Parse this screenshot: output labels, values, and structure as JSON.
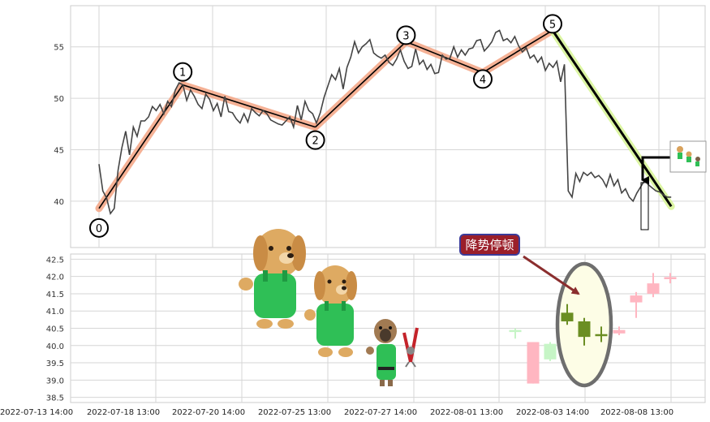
{
  "chart_data": [
    {
      "type": "line",
      "panel": "top",
      "ylim": [
        35.5,
        59
      ],
      "y_ticks": [
        "40",
        "45",
        "50",
        "55"
      ],
      "grid": true,
      "wave_points": [
        {
          "label": "0",
          "x": 0,
          "y": 39.3
        },
        {
          "label": "1",
          "x": 12,
          "y": 51.3
        },
        {
          "label": "2",
          "x": 31,
          "y": 47.2
        },
        {
          "label": "3",
          "x": 44,
          "y": 55.5
        },
        {
          "label": "4",
          "x": 55,
          "y": 52.5
        },
        {
          "label": "5",
          "x": 65,
          "y": 56.6
        }
      ],
      "trend_segments": [
        {
          "from": 0,
          "to": 5,
          "color": "#f4a98a"
        },
        {
          "from": 5,
          "to": 6,
          "color": "#d9f59a"
        }
      ],
      "last_point": {
        "x": 82,
        "y": 39.5
      },
      "series": [
        {
          "values": [
            43.6,
            41.0,
            40.3,
            38.8,
            39.3,
            43.0,
            45.2,
            46.8,
            44.5,
            47.2,
            46.3,
            47.8,
            47.8,
            48.2,
            49.2,
            48.8,
            49.4,
            48.5,
            49.7,
            49.2,
            50.8,
            51.5,
            51.3,
            49.8,
            50.8,
            50.2,
            49.4,
            49.0,
            50.4,
            49.9,
            48.8,
            49.5,
            48.2,
            50.2,
            48.7,
            48.6,
            48.0,
            47.6,
            48.5,
            47.7,
            49.0,
            48.6,
            48.3,
            48.8,
            48.5,
            47.9,
            47.7,
            47.5,
            47.4,
            47.8,
            48.2,
            47.2,
            49.3,
            47.9,
            49.7,
            48.8,
            48.5,
            47.6,
            48.6,
            50.1,
            51.2,
            52.3,
            51.8,
            52.9,
            50.9,
            53.0,
            54.0,
            55.5,
            54.4,
            55.0,
            55.3,
            55.7,
            54.4,
            54.1,
            53.9,
            54.2,
            53.5,
            53.2,
            53.8,
            54.7,
            53.6,
            52.9,
            53.1,
            54.8,
            53.3,
            53.7,
            52.8,
            53.3,
            52.4,
            52.5,
            54.2,
            53.8,
            53.9,
            55.0,
            54.0,
            54.7,
            54.2,
            54.8,
            54.9,
            55.6,
            55.7,
            54.6,
            55.0,
            55.5,
            56.4,
            56.6,
            55.6,
            55.8,
            55.4,
            56.0,
            55.1,
            54.5,
            54.9,
            53.9,
            54.2,
            53.5,
            54.0,
            52.7,
            53.4,
            53.0,
            53.6,
            51.6,
            53.3,
            41.0,
            40.4,
            42.7,
            41.9,
            42.8,
            42.5,
            42.8,
            42.3,
            42.5,
            42.1,
            41.4,
            42.6,
            41.5,
            42.1,
            40.8,
            41.2,
            40.4,
            40.0,
            40.8,
            41.4,
            42.0,
            41.6,
            41.3,
            41.0,
            40.9,
            40.6,
            40.4,
            40.4
          ]
        }
      ]
    },
    {
      "type": "candlestick",
      "panel": "bottom",
      "ylim": [
        38.35,
        42.65
      ],
      "y_ticks": [
        "38.5",
        "39.0",
        "39.5",
        "40.0",
        "40.5",
        "41.0",
        "41.5",
        "42.0",
        "42.5"
      ],
      "x_ticks": [
        "2022-07-13 14:00",
        "2022-07-18 13:00",
        "2022-07-20 14:00",
        "2022-07-25 13:00",
        "2022-07-27 14:00",
        "2022-08-01 13:00",
        "2022-08-03 14:00",
        "2022-08-08 13:00"
      ],
      "grid": true,
      "candles": [
        {
          "x": 0,
          "open": 40.45,
          "close": 40.4,
          "high": 40.5,
          "low": 40.2,
          "color": "#c6f5c6"
        },
        {
          "x": 1,
          "open": 40.1,
          "close": 38.9,
          "high": 40.1,
          "low": 38.9,
          "color": "#ffb6c1"
        },
        {
          "x": 2,
          "open": 40.05,
          "close": 39.6,
          "high": 40.1,
          "low": 39.55,
          "color": "#c6f5c6"
        },
        {
          "x": 3,
          "open": 40.95,
          "close": 40.7,
          "high": 41.2,
          "low": 40.6,
          "color": "#6b8e23"
        },
        {
          "x": 4,
          "open": 40.7,
          "close": 40.25,
          "high": 40.8,
          "low": 40.0,
          "color": "#6b8e23"
        },
        {
          "x": 5,
          "open": 40.33,
          "close": 40.3,
          "high": 40.55,
          "low": 40.1,
          "color": "#6b8e23"
        },
        {
          "x": 6,
          "open": 40.35,
          "close": 40.45,
          "high": 40.55,
          "low": 40.3,
          "color": "#ffb6c1"
        },
        {
          "x": 7,
          "open": 41.25,
          "close": 41.45,
          "high": 41.55,
          "low": 40.8,
          "color": "#ffb6c1"
        },
        {
          "x": 8,
          "open": 41.5,
          "close": 41.8,
          "high": 42.1,
          "low": 41.4,
          "color": "#ffb6c1"
        },
        {
          "x": 9,
          "open": 41.95,
          "close": 41.98,
          "high": 42.1,
          "low": 41.8,
          "color": "#ffb6c1"
        }
      ],
      "annotation": {
        "text": "降势停顿",
        "highlight_candles": [
          3,
          4,
          5
        ]
      }
    }
  ]
}
